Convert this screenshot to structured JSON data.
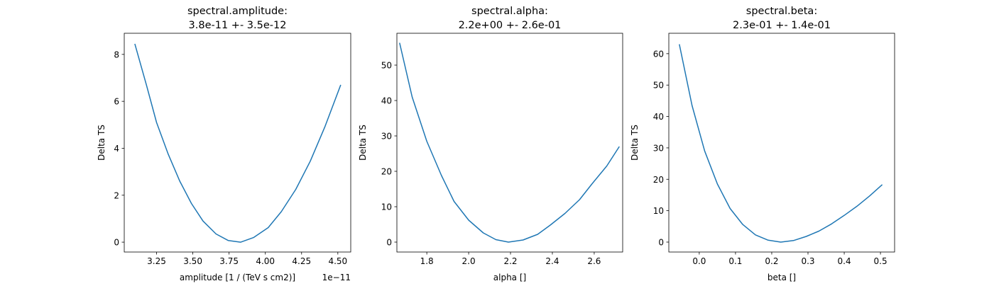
{
  "chart_data": [
    {
      "type": "line",
      "title": "spectral.amplitude:\n3.8e-11 +- 3.5e-12",
      "title_lines": [
        "spectral.amplitude:",
        "3.8e-11 +- 3.5e-12"
      ],
      "xlabel": "amplitude [1 / (TeV s cm2)]",
      "ylabel": "Delta TS",
      "x_offset_label": "1e−11",
      "xlim": [
        3.027,
        4.589
      ],
      "ylim": [
        -0.42,
        8.9
      ],
      "xticks": [
        3.25,
        3.5,
        3.75,
        4.0,
        4.25,
        4.5
      ],
      "xtick_labels": [
        "3.25",
        "3.50",
        "3.75",
        "4.00",
        "4.25",
        "4.50"
      ],
      "yticks": [
        0,
        2,
        4,
        6,
        8
      ],
      "ytick_labels": [
        "0",
        "2",
        "4",
        "6",
        "8"
      ],
      "grid": false,
      "color": "#1f77b4",
      "x": [
        3.1,
        3.18,
        3.25,
        3.33,
        3.41,
        3.49,
        3.57,
        3.66,
        3.745,
        3.83,
        3.92,
        4.02,
        4.11,
        4.21,
        4.31,
        4.41,
        4.52
      ],
      "y": [
        8.45,
        6.7,
        5.1,
        3.75,
        2.6,
        1.65,
        0.9,
        0.35,
        0.07,
        0.0,
        0.2,
        0.62,
        1.3,
        2.25,
        3.45,
        4.9,
        6.7
      ]
    },
    {
      "type": "line",
      "title": "spectral.alpha:\n2.2e+00 +- 2.6e-01",
      "title_lines": [
        "spectral.alpha:",
        "2.2e+00 +- 2.6e-01"
      ],
      "xlabel": "alpha []",
      "ylabel": "Delta TS",
      "x_offset_label": "",
      "xlim": [
        1.657,
        2.736
      ],
      "ylim": [
        -2.8,
        59
      ],
      "xticks": [
        1.8,
        2.0,
        2.2,
        2.4,
        2.6
      ],
      "xtick_labels": [
        "1.8",
        "2.0",
        "2.2",
        "2.4",
        "2.6"
      ],
      "yticks": [
        0,
        10,
        20,
        30,
        40,
        50
      ],
      "ytick_labels": [
        "0",
        "10",
        "20",
        "30",
        "40",
        "50"
      ],
      "grid": false,
      "color": "#1f77b4",
      "x": [
        1.67,
        1.73,
        1.8,
        1.87,
        1.93,
        2.0,
        2.07,
        2.13,
        2.19,
        2.26,
        2.33,
        2.39,
        2.46,
        2.53,
        2.59,
        2.66,
        2.72
      ],
      "y": [
        56.3,
        41,
        28.5,
        18.8,
        11.5,
        6.2,
        2.6,
        0.7,
        0.0,
        0.6,
        2.2,
        4.8,
        8.1,
        12,
        16.5,
        21.5,
        27
      ]
    },
    {
      "type": "line",
      "title": "spectral.beta:\n2.3e-01 +- 1.4e-01",
      "title_lines": [
        "spectral.beta:",
        "2.3e-01 +- 1.4e-01"
      ],
      "xlabel": "beta []",
      "ylabel": "Delta TS",
      "x_offset_label": "",
      "xlim": [
        -0.084,
        0.539
      ],
      "ylim": [
        -3.16,
        66.5
      ],
      "xticks": [
        0.0,
        0.1,
        0.2,
        0.3,
        0.4,
        0.5
      ],
      "xtick_labels": [
        "0.0",
        "0.1",
        "0.2",
        "0.3",
        "0.4",
        "0.5"
      ],
      "yticks": [
        0,
        10,
        20,
        30,
        40,
        50,
        60
      ],
      "ytick_labels": [
        "0",
        "10",
        "20",
        "30",
        "40",
        "50",
        "60"
      ],
      "grid": false,
      "color": "#1f77b4",
      "x": [
        -0.055,
        -0.02,
        0.015,
        0.05,
        0.085,
        0.12,
        0.155,
        0.19,
        0.225,
        0.26,
        0.295,
        0.33,
        0.365,
        0.4,
        0.435,
        0.47,
        0.505
      ],
      "y": [
        63,
        43.5,
        29,
        18.5,
        10.7,
        5.6,
        2.3,
        0.6,
        0.0,
        0.5,
        1.8,
        3.5,
        5.8,
        8.5,
        11.4,
        14.7,
        18.3
      ]
    }
  ]
}
